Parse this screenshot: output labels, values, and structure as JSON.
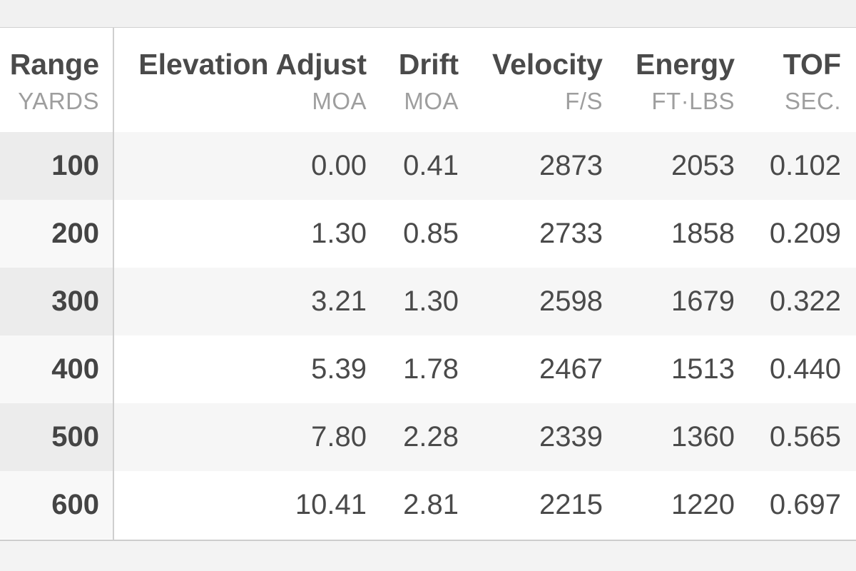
{
  "columns": [
    {
      "title": "Range",
      "unit": "YARDS"
    },
    {
      "title": "Elevation Adjust",
      "unit": "MOA"
    },
    {
      "title": "Drift",
      "unit": "MOA"
    },
    {
      "title": "Velocity",
      "unit": "F/S"
    },
    {
      "title": "Energy",
      "unit": "FT·LBS"
    },
    {
      "title": "TOF",
      "unit": "SEC."
    }
  ],
  "rows": [
    {
      "range": "100",
      "elevation": "0.00",
      "drift": "0.41",
      "velocity": "2873",
      "energy": "2053",
      "tof": "0.102"
    },
    {
      "range": "200",
      "elevation": "1.30",
      "drift": "0.85",
      "velocity": "2733",
      "energy": "1858",
      "tof": "0.209"
    },
    {
      "range": "300",
      "elevation": "3.21",
      "drift": "1.30",
      "velocity": "2598",
      "energy": "1679",
      "tof": "0.322"
    },
    {
      "range": "400",
      "elevation": "5.39",
      "drift": "1.78",
      "velocity": "2467",
      "energy": "1513",
      "tof": "0.440"
    },
    {
      "range": "500",
      "elevation": "7.80",
      "drift": "2.28",
      "velocity": "2339",
      "energy": "1360",
      "tof": "0.565"
    },
    {
      "range": "600",
      "elevation": "10.41",
      "drift": "2.81",
      "velocity": "2215",
      "energy": "1220",
      "tof": "0.697"
    }
  ],
  "colors": {
    "text": "#4a4a4a",
    "unit_text": "#9e9e9e",
    "alt_row": "#f6f6f6",
    "divider": "#cfcfcf"
  }
}
